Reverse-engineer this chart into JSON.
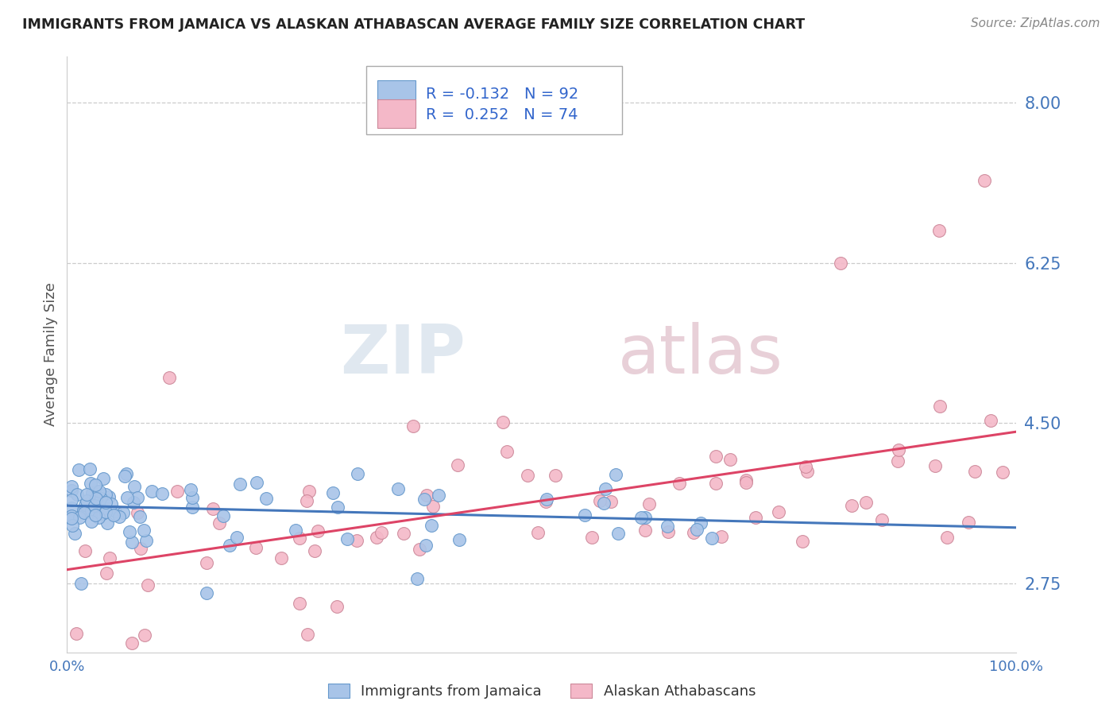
{
  "title": "IMMIGRANTS FROM JAMAICA VS ALASKAN ATHABASCAN AVERAGE FAMILY SIZE CORRELATION CHART",
  "source": "Source: ZipAtlas.com",
  "ylabel": "Average Family Size",
  "xlim": [
    0.0,
    1.0
  ],
  "ylim": [
    2.0,
    8.5
  ],
  "yticks": [
    2.75,
    4.5,
    6.25,
    8.0
  ],
  "series1_label": "Immigrants from Jamaica",
  "series1_R": "-0.132",
  "series1_N": "92",
  "series1_color": "#a8c4e8",
  "series1_edge": "#6699cc",
  "series2_label": "Alaskan Athabascans",
  "series2_R": "0.252",
  "series2_N": "74",
  "series2_color": "#f4b8c8",
  "series2_edge": "#cc8899",
  "trend1_color": "#4477bb",
  "trend2_color": "#dd4466",
  "grid_color": "#cccccc",
  "tick_color": "#4477bb",
  "watermark_zip": "ZIP",
  "watermark_atlas": "atlas",
  "background_color": "#ffffff"
}
